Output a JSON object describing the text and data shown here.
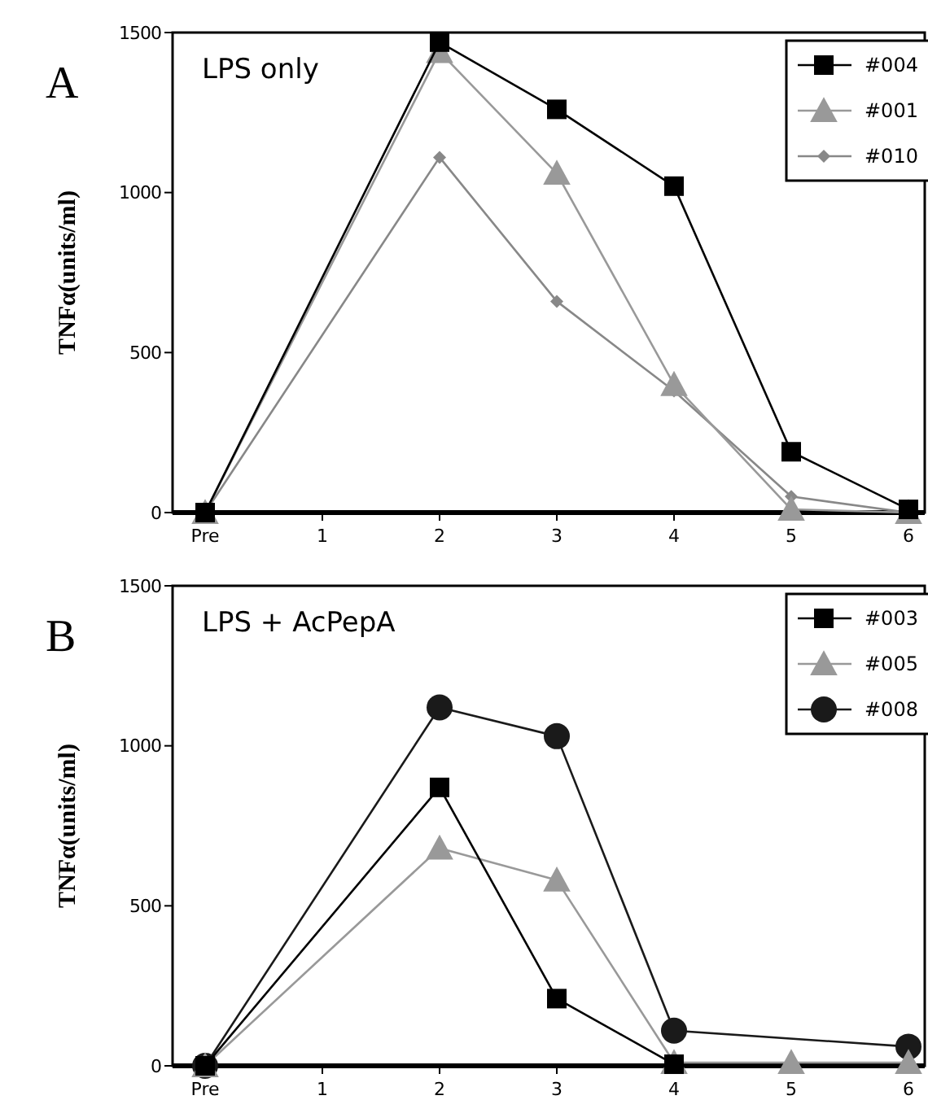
{
  "chart_data": [
    {
      "type": "line",
      "title": "A",
      "ylabel": "TNFα(units/ml)",
      "annotations": [
        "LPS only"
      ],
      "categories": [
        "Pre",
        "1",
        "2",
        "3",
        "4",
        "5",
        "6"
      ],
      "ylim": [
        0,
        1500
      ],
      "yticks": [
        0,
        500,
        1000,
        1500
      ],
      "legend": "top right",
      "grid": false,
      "series": [
        {
          "name": "#004",
          "color": "#000000",
          "marker": "square",
          "values": [
            0,
            null,
            1470,
            1260,
            1020,
            190,
            10
          ]
        },
        {
          "name": "#001",
          "color": "#999999",
          "marker": "triangle",
          "values": [
            0,
            null,
            1440,
            1060,
            400,
            10,
            0
          ]
        },
        {
          "name": "#010",
          "color": "#888888",
          "marker": "diamond",
          "values": [
            0,
            null,
            1110,
            660,
            380,
            50,
            0
          ]
        }
      ]
    },
    {
      "type": "line",
      "title": "B",
      "ylabel": "TNFα(units/ml)",
      "annotations": [
        "LPS + AcPepA"
      ],
      "categories": [
        "Pre",
        "1",
        "2",
        "3",
        "4",
        "5",
        "6"
      ],
      "ylim": [
        0,
        1500
      ],
      "yticks": [
        0,
        500,
        1000,
        1500
      ],
      "legend": "top right",
      "grid": false,
      "series": [
        {
          "name": "#003",
          "color": "#000000",
          "marker": "square",
          "values": [
            0,
            null,
            870,
            210,
            5,
            null,
            null
          ]
        },
        {
          "name": "#005",
          "color": "#999999",
          "marker": "triangle",
          "values": [
            0,
            null,
            680,
            580,
            10,
            10,
            10
          ]
        },
        {
          "name": "#008",
          "color": "#1a1a1a",
          "marker": "circle",
          "values": [
            0,
            null,
            1120,
            1030,
            110,
            null,
            60
          ]
        }
      ]
    }
  ]
}
